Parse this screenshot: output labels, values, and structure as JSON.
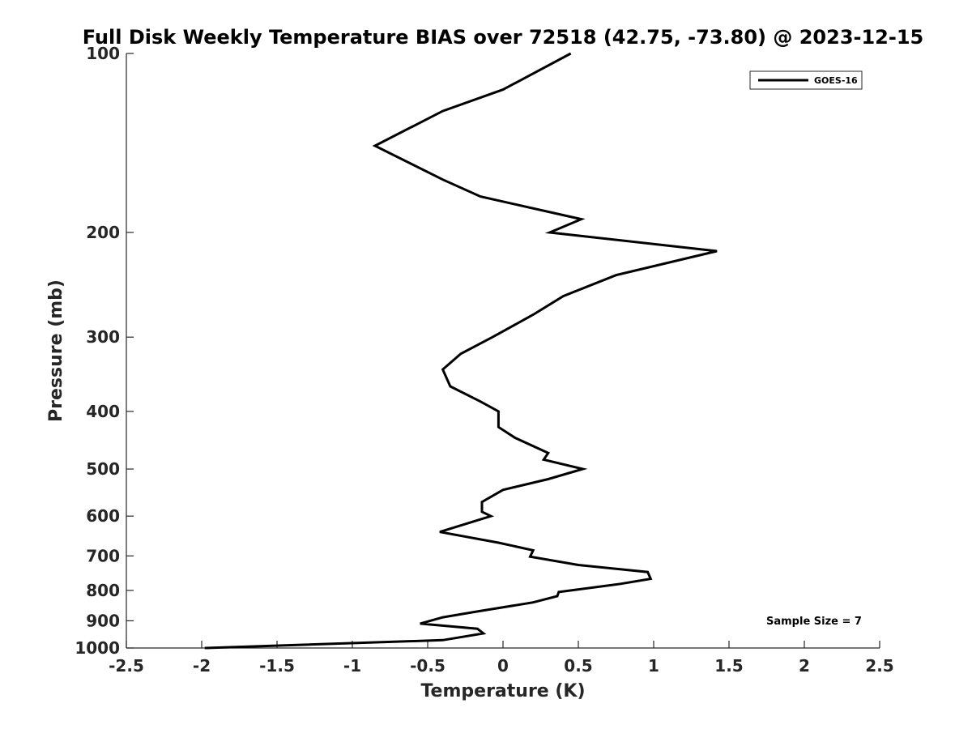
{
  "chart_data": {
    "type": "line",
    "title": "Full Disk Weekly Temperature BIAS over 72518 (42.75, -73.80) @ 2023-12-15",
    "xlabel": "Temperature (K)",
    "ylabel": "Pressure (mb)",
    "xlim": [
      -2.5,
      2.5
    ],
    "ylim": [
      100,
      1000
    ],
    "y_scale": "log",
    "y_reversed": true,
    "grid": false,
    "x_ticks": [
      -2.5,
      -2,
      -1.5,
      -1,
      -0.5,
      0,
      0.5,
      1,
      1.5,
      2,
      2.5
    ],
    "x_tick_labels": [
      "-2.5",
      "-2",
      "-1.5",
      "-1",
      "-0.5",
      "0",
      "0.5",
      "1",
      "1.5",
      "2",
      "2.5"
    ],
    "y_ticks": [
      100,
      200,
      300,
      400,
      500,
      600,
      700,
      800,
      900,
      1000
    ],
    "y_tick_labels": [
      "100",
      "200",
      "300",
      "400",
      "500",
      "600",
      "700",
      "800",
      "900",
      "1000"
    ],
    "legend_position": "top-right",
    "line_color": "#000000",
    "series": [
      {
        "name": "GOES-16",
        "points": [
          {
            "x": 0.45,
            "y": 100
          },
          {
            "x": 0.0,
            "y": 115
          },
          {
            "x": -0.4,
            "y": 125
          },
          {
            "x": -0.85,
            "y": 143
          },
          {
            "x": -0.4,
            "y": 163
          },
          {
            "x": -0.15,
            "y": 174
          },
          {
            "x": 0.52,
            "y": 190
          },
          {
            "x": 0.31,
            "y": 200
          },
          {
            "x": 1.42,
            "y": 215
          },
          {
            "x": 0.75,
            "y": 236
          },
          {
            "x": 0.4,
            "y": 256
          },
          {
            "x": 0.2,
            "y": 275
          },
          {
            "x": -0.07,
            "y": 300
          },
          {
            "x": -0.28,
            "y": 320
          },
          {
            "x": -0.4,
            "y": 340
          },
          {
            "x": -0.35,
            "y": 363
          },
          {
            "x": -0.15,
            "y": 385
          },
          {
            "x": -0.03,
            "y": 400
          },
          {
            "x": -0.03,
            "y": 425
          },
          {
            "x": 0.08,
            "y": 443
          },
          {
            "x": 0.3,
            "y": 470
          },
          {
            "x": 0.27,
            "y": 482
          },
          {
            "x": 0.53,
            "y": 500
          },
          {
            "x": 0.3,
            "y": 520
          },
          {
            "x": 0.0,
            "y": 542
          },
          {
            "x": -0.14,
            "y": 568
          },
          {
            "x": -0.14,
            "y": 590
          },
          {
            "x": -0.08,
            "y": 600
          },
          {
            "x": -0.42,
            "y": 638
          },
          {
            "x": -0.03,
            "y": 665
          },
          {
            "x": 0.2,
            "y": 685
          },
          {
            "x": 0.18,
            "y": 702
          },
          {
            "x": 0.5,
            "y": 725
          },
          {
            "x": 0.96,
            "y": 745
          },
          {
            "x": 0.98,
            "y": 765
          },
          {
            "x": 0.78,
            "y": 780
          },
          {
            "x": 0.37,
            "y": 805
          },
          {
            "x": 0.36,
            "y": 818
          },
          {
            "x": 0.2,
            "y": 838
          },
          {
            "x": -0.17,
            "y": 868
          },
          {
            "x": -0.4,
            "y": 888
          },
          {
            "x": -0.55,
            "y": 910
          },
          {
            "x": -0.17,
            "y": 928
          },
          {
            "x": -0.13,
            "y": 945
          },
          {
            "x": -0.4,
            "y": 970
          },
          {
            "x": -1.98,
            "y": 1000
          }
        ]
      }
    ],
    "annotation": "Sample Size = 7"
  }
}
